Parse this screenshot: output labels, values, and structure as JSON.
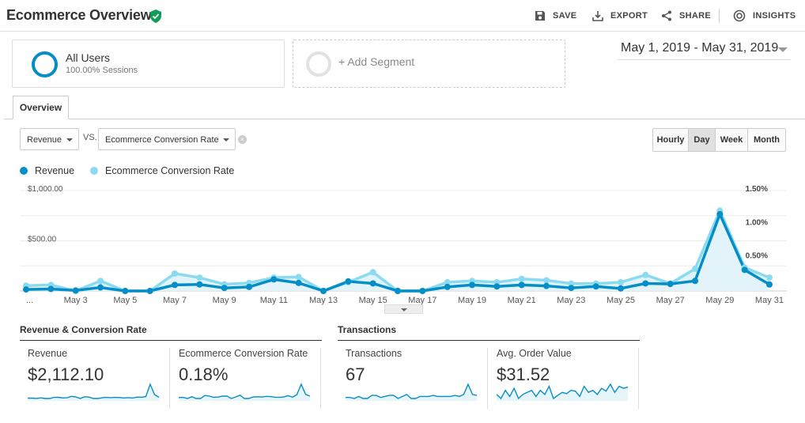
{
  "header": {
    "title": "Ecommerce Overview",
    "actions": [
      {
        "label": "SAVE",
        "icon": "save-icon"
      },
      {
        "label": "EXPORT",
        "icon": "export-icon"
      },
      {
        "label": "SHARE",
        "icon": "share-icon"
      },
      {
        "label": "INSIGHTS",
        "icon": "insights-icon"
      }
    ]
  },
  "segments": {
    "all_users": {
      "name": "All Users",
      "sub": "100.00% Sessions"
    },
    "add_label": "+ Add Segment"
  },
  "date_range": "May 1, 2019 - May 31, 2019",
  "tabs": {
    "overview": "Overview"
  },
  "controls": {
    "metric1": "Revenue",
    "vs": "VS.",
    "metric2": "Ecommerce Conversion Rate",
    "granularity": [
      "Hourly",
      "Day",
      "Week",
      "Month"
    ],
    "active_granularity": "Day"
  },
  "legend": [
    {
      "label": "Revenue",
      "color": "#058dc7"
    },
    {
      "label": "Ecommerce Conversion Rate",
      "color": "#8bdbf0"
    }
  ],
  "chart_data": {
    "type": "line",
    "x": [
      1,
      2,
      3,
      4,
      5,
      6,
      7,
      8,
      9,
      10,
      11,
      12,
      13,
      14,
      15,
      16,
      17,
      18,
      19,
      20,
      21,
      22,
      23,
      24,
      25,
      26,
      27,
      28,
      29,
      30,
      31
    ],
    "x_tick_labels": [
      "...",
      "May 3",
      "May 5",
      "May 7",
      "May 9",
      "May 11",
      "May 13",
      "May 15",
      "May 17",
      "May 19",
      "May 21",
      "May 23",
      "May 25",
      "May 27",
      "May 29",
      "May 31"
    ],
    "series": [
      {
        "name": "Revenue",
        "axis": "left",
        "color": "#058dc7",
        "values": [
          15,
          20,
          5,
          35,
          0,
          0,
          60,
          65,
          30,
          40,
          115,
          80,
          0,
          95,
          75,
          0,
          0,
          40,
          60,
          45,
          60,
          50,
          30,
          45,
          25,
          75,
          70,
          100,
          765,
          210,
          65
        ]
      },
      {
        "name": "Ecommerce Conversion Rate",
        "axis": "right",
        "color": "#8bdbf0",
        "values": [
          0.08,
          0.09,
          0.0,
          0.15,
          0.0,
          0.0,
          0.26,
          0.2,
          0.1,
          0.12,
          0.2,
          0.21,
          0.0,
          0.13,
          0.28,
          0.0,
          0.0,
          0.13,
          0.15,
          0.13,
          0.18,
          0.16,
          0.11,
          0.11,
          0.13,
          0.24,
          0.11,
          0.33,
          1.2,
          0.35,
          0.2
        ]
      }
    ],
    "left_axis": {
      "ticks": [
        "$1,000.00",
        "$500.00"
      ],
      "range": [
        0,
        1000
      ]
    },
    "right_axis": {
      "ticks": [
        "1.50%",
        "1.00%",
        "0.50%"
      ],
      "range": [
        0,
        1.5
      ]
    },
    "legend_position": "top-left",
    "grid": true
  },
  "groups": [
    {
      "title": "Revenue & Conversion Rate"
    },
    {
      "title": "Transactions"
    }
  ],
  "cards": [
    {
      "label": "Revenue",
      "value": "$2,112.10",
      "spark": [
        15,
        20,
        5,
        35,
        0,
        0,
        60,
        65,
        30,
        40,
        115,
        80,
        0,
        95,
        75,
        0,
        0,
        40,
        60,
        45,
        60,
        50,
        30,
        45,
        25,
        75,
        70,
        100,
        765,
        210,
        65
      ]
    },
    {
      "label": "Ecommerce Conversion Rate",
      "value": "0.18%",
      "spark": [
        0.08,
        0.09,
        0.0,
        0.15,
        0.0,
        0.0,
        0.26,
        0.2,
        0.1,
        0.12,
        0.2,
        0.21,
        0.0,
        0.13,
        0.28,
        0.0,
        0.0,
        0.13,
        0.15,
        0.13,
        0.18,
        0.16,
        0.11,
        0.11,
        0.13,
        0.24,
        0.11,
        0.33,
        1.2,
        0.35,
        0.2
      ]
    },
    {
      "label": "Transactions",
      "value": "67",
      "spark": [
        1,
        1,
        0,
        2,
        0,
        0,
        3,
        3,
        1,
        2,
        3,
        3,
        0,
        2,
        4,
        0,
        0,
        2,
        2,
        2,
        3,
        2,
        2,
        2,
        2,
        3,
        2,
        4,
        14,
        4,
        3
      ]
    },
    {
      "label": "Avg. Order Value",
      "value": "$31.52",
      "spark": [
        20,
        10,
        30,
        15,
        35,
        10,
        20,
        25,
        30,
        15,
        30,
        20,
        40,
        10,
        18,
        25,
        22,
        30,
        28,
        15,
        40,
        25,
        30,
        20,
        35,
        28,
        45,
        25,
        40,
        35,
        38
      ]
    }
  ]
}
